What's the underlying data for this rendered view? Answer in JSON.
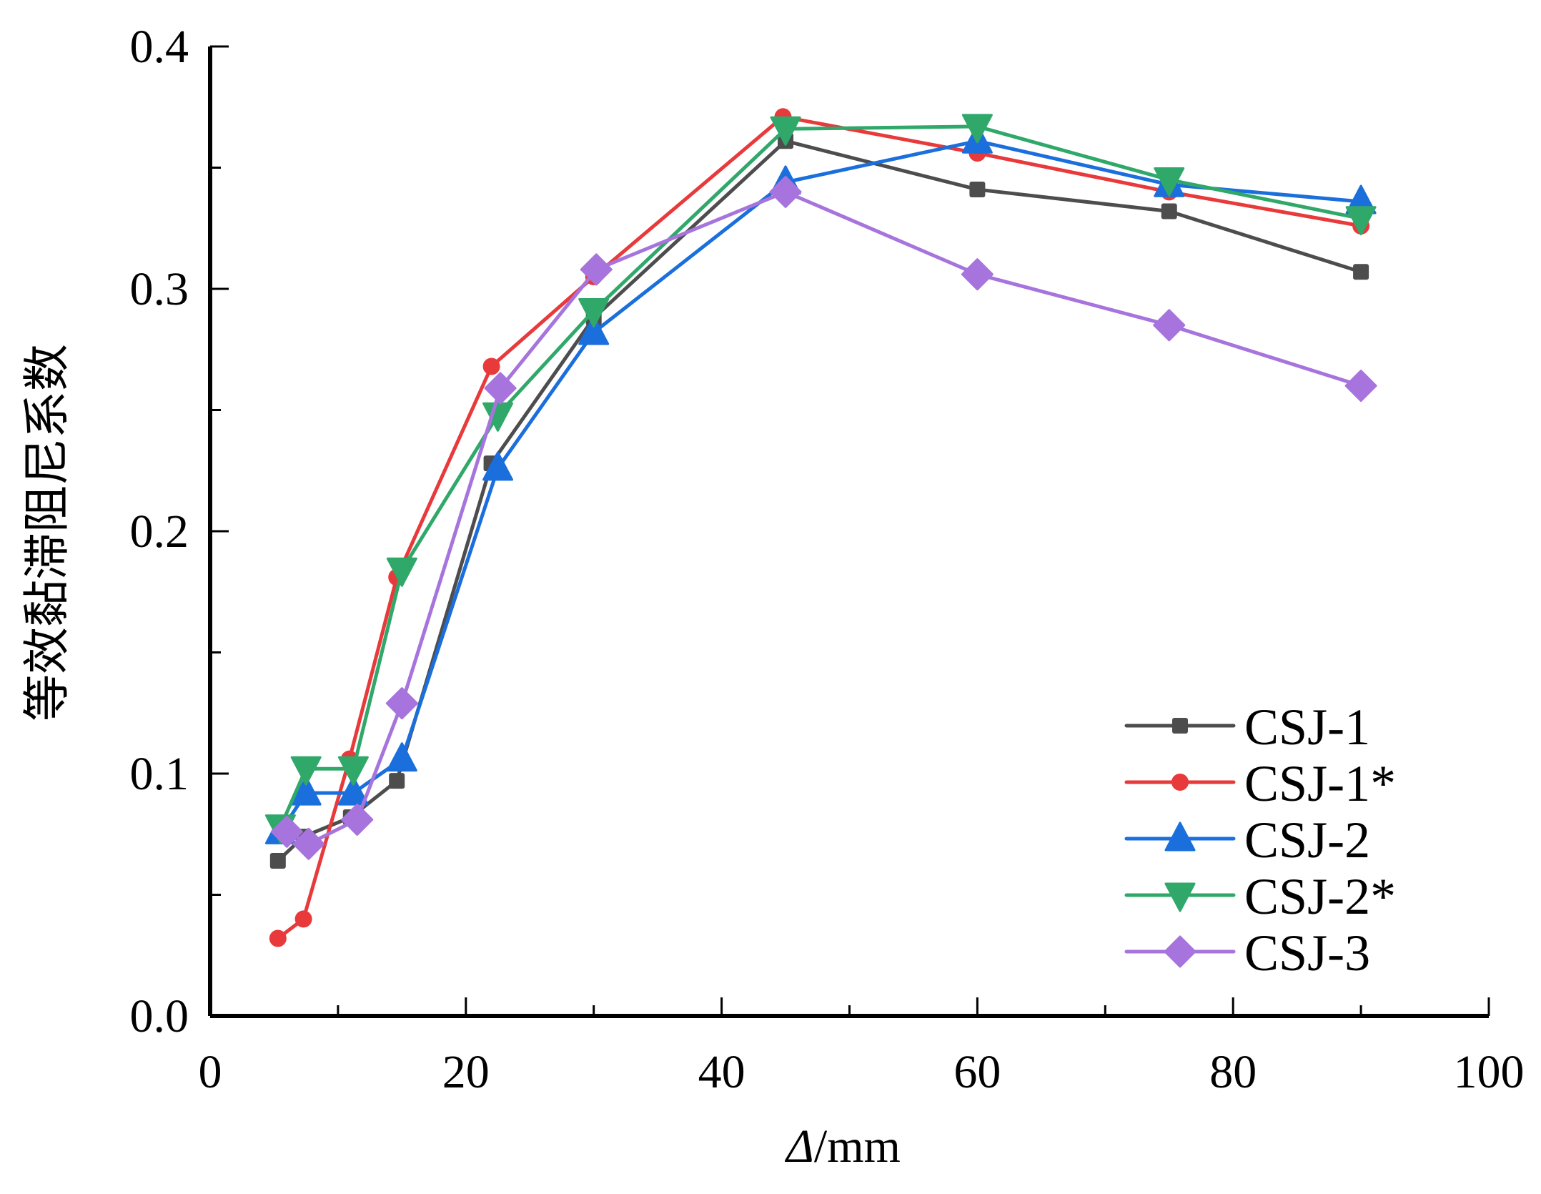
{
  "chart_data": {
    "type": "line",
    "title": "",
    "xlabel_italic": "Δ",
    "xlabel_rest": "/mm",
    "ylabel": "等效黏滞阻尼系数",
    "xlim": [
      0,
      100
    ],
    "ylim": [
      0.0,
      0.4
    ],
    "x_ticks": [
      0,
      20,
      40,
      60,
      80,
      100
    ],
    "x_tick_labels": [
      "0",
      "20",
      "40",
      "60",
      "80",
      "100"
    ],
    "x_minor_ticks": [
      10,
      30,
      50,
      70,
      90
    ],
    "y_ticks": [
      0.0,
      0.1,
      0.2,
      0.3,
      0.4
    ],
    "y_tick_labels": [
      "0.0",
      "0.1",
      "0.2",
      "0.3",
      "0.4"
    ],
    "y_minor_ticks": [
      0.05,
      0.15,
      0.25,
      0.35
    ],
    "grid": false,
    "legend_position": "bottom-right",
    "series": [
      {
        "name": "CSJ-1",
        "color": "#4d4d4d",
        "marker": "square",
        "x": [
          5.3,
          7.3,
          11.0,
          14.6,
          22.0,
          30.0,
          45.0,
          60.0,
          75.0,
          90.0
        ],
        "y": [
          0.064,
          0.074,
          0.082,
          0.097,
          0.228,
          0.288,
          0.361,
          0.341,
          0.332,
          0.307
        ]
      },
      {
        "name": "CSJ-1*",
        "color": "#e8393b",
        "marker": "circle",
        "x": [
          5.3,
          7.3,
          10.9,
          14.6,
          22.0,
          30.0,
          44.8,
          60.0,
          75.0,
          90.0
        ],
        "y": [
          0.032,
          0.04,
          0.106,
          0.181,
          0.268,
          0.305,
          0.371,
          0.356,
          0.34,
          0.326
        ]
      },
      {
        "name": "CSJ-2",
        "color": "#1a6fdc",
        "marker": "triangle-up",
        "x": [
          5.5,
          7.5,
          11.2,
          15.0,
          22.5,
          30.0,
          45.0,
          60.0,
          75.0,
          90.0
        ],
        "y": [
          0.076,
          0.092,
          0.092,
          0.106,
          0.226,
          0.282,
          0.344,
          0.361,
          0.343,
          0.336
        ]
      },
      {
        "name": "CSJ-2*",
        "color": "#30a86a",
        "marker": "triangle-down",
        "x": [
          5.5,
          7.5,
          11.2,
          15.0,
          22.5,
          30.0,
          45.0,
          60.0,
          75.0,
          90.0
        ],
        "y": [
          0.078,
          0.102,
          0.102,
          0.184,
          0.248,
          0.291,
          0.366,
          0.367,
          0.345,
          0.329
        ]
      },
      {
        "name": "CSJ-3",
        "color": "#a674dc",
        "marker": "diamond",
        "x": [
          6.0,
          7.7,
          11.5,
          15.0,
          22.7,
          30.2,
          45.0,
          60.0,
          75.0,
          90.0
        ],
        "y": [
          0.076,
          0.071,
          0.081,
          0.129,
          0.259,
          0.308,
          0.34,
          0.306,
          0.285,
          0.26
        ]
      }
    ]
  }
}
